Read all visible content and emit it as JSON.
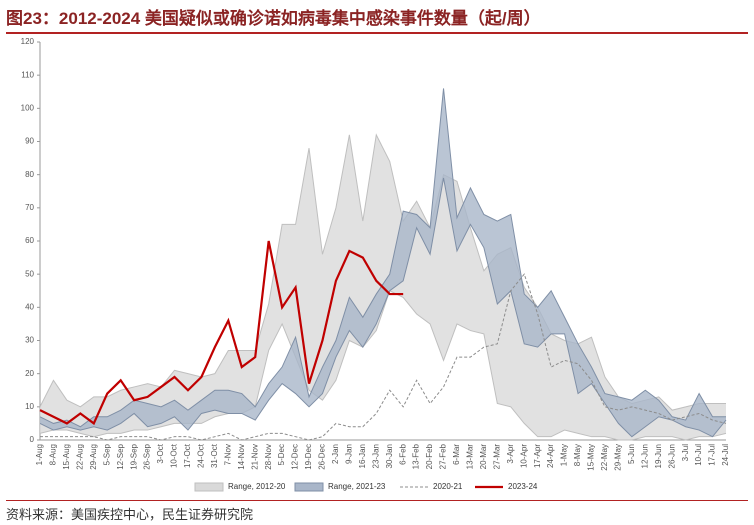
{
  "chart_data": {
    "type": "line",
    "title": "图23：2012-2024 美国疑似或确诊诺如病毒集中感染事件数量（起/周）",
    "source": "资料来源：美国疾控中心，民生证券研究院",
    "categories": [
      "1-Aug",
      "8-Aug",
      "15-Aug",
      "22-Aug",
      "29-Aug",
      "5-Sep",
      "12-Sep",
      "19-Sep",
      "26-Sep",
      "3-Oct",
      "10-Oct",
      "17-Oct",
      "24-Oct",
      "31-Oct",
      "7-Nov",
      "14-Nov",
      "21-Nov",
      "28-Nov",
      "5-Dec",
      "12-Dec",
      "19-Dec",
      "26-Dec",
      "2-Jan",
      "9-Jan",
      "16-Jan",
      "23-Jan",
      "30-Jan",
      "6-Feb",
      "13-Feb",
      "20-Feb",
      "27-Feb",
      "6-Mar",
      "13-Mar",
      "20-Mar",
      "27-Mar",
      "3-Apr",
      "10-Apr",
      "17-Apr",
      "24-Apr",
      "1-May",
      "8-May",
      "15-May",
      "22-May",
      "29-May",
      "5-Jun",
      "12-Jun",
      "19-Jun",
      "26-Jun",
      "3-Jul",
      "10-Jul",
      "17-Jul",
      "24-Jul"
    ],
    "ylim": [
      0,
      120
    ],
    "yticks": [
      0,
      10,
      20,
      30,
      40,
      50,
      60,
      70,
      80,
      90,
      100,
      110,
      120
    ],
    "series": [
      {
        "name": "Range, 2012-20",
        "type": "range",
        "color": "#d9d9d9",
        "edge": "#bfbfbf",
        "upper": [
          10,
          18,
          12,
          10,
          13,
          13,
          15,
          16,
          17,
          16,
          21,
          20,
          19,
          20,
          27,
          27,
          27,
          41,
          65,
          65,
          88,
          56,
          70,
          92,
          66,
          92,
          84,
          66,
          72,
          64,
          80,
          78,
          64,
          51,
          56,
          58,
          46,
          40,
          32,
          30,
          29,
          31,
          19,
          13,
          11,
          12,
          13,
          9,
          10,
          11,
          11,
          11
        ],
        "lower": [
          2,
          3,
          3,
          2,
          1,
          2,
          2,
          3,
          3,
          4,
          5,
          5,
          5,
          7,
          8,
          8,
          10,
          27,
          35,
          25,
          15,
          12,
          18,
          30,
          28,
          33,
          45,
          43,
          38,
          35,
          24,
          35,
          33,
          32,
          11,
          10,
          5,
          1,
          1,
          3,
          2,
          1,
          1,
          0,
          0,
          1,
          1,
          1,
          0,
          1,
          1,
          2
        ]
      },
      {
        "name": "Range, 2021-23",
        "type": "range",
        "color": "#a9b6c9",
        "edge": "#7f8fa6",
        "upper": [
          7,
          5,
          6,
          4,
          7,
          7,
          9,
          12,
          11,
          10,
          12,
          9,
          12,
          15,
          15,
          14,
          10,
          17,
          22,
          31,
          13,
          22,
          30,
          43,
          37,
          44,
          50,
          69,
          68,
          64,
          106,
          67,
          76,
          68,
          66,
          68,
          44,
          40,
          45,
          37,
          29,
          22,
          14,
          13,
          12,
          15,
          12,
          7,
          6,
          14,
          7,
          7
        ],
        "lower": [
          5,
          3,
          4,
          3,
          4,
          3,
          5,
          8,
          4,
          5,
          7,
          3,
          8,
          9,
          8,
          8,
          6,
          12,
          17,
          14,
          10,
          14,
          25,
          33,
          28,
          35,
          45,
          48,
          64,
          56,
          79,
          57,
          65,
          58,
          41,
          45,
          29,
          28,
          32,
          32,
          14,
          17,
          11,
          5,
          1,
          4,
          7,
          6,
          4,
          3,
          1,
          6
        ]
      },
      {
        "name": "2020-21",
        "type": "dashed",
        "color": "#8c8c8c",
        "values": [
          1,
          1,
          1,
          1,
          1,
          0,
          1,
          1,
          1,
          0,
          1,
          1,
          0,
          1,
          2,
          0,
          1,
          2,
          2,
          1,
          0,
          1,
          5,
          4,
          4,
          8,
          15,
          10,
          18,
          11,
          16,
          25,
          25,
          28,
          29,
          45,
          50,
          38,
          22,
          24,
          23,
          18,
          10,
          9,
          10,
          9,
          8,
          6,
          7,
          8,
          6,
          5
        ]
      },
      {
        "name": "2023-24",
        "type": "line",
        "color": "#c00000",
        "values": [
          9,
          7,
          5,
          8,
          5,
          14,
          18,
          12,
          13,
          16,
          19,
          15,
          19,
          28,
          36,
          22,
          25,
          60,
          40,
          46,
          17,
          30,
          48,
          57,
          55,
          48,
          44,
          44,
          null,
          null,
          null,
          null,
          null,
          null,
          null,
          null,
          null,
          null,
          null,
          null,
          null,
          null,
          null,
          null,
          null,
          null,
          null,
          null,
          null,
          null,
          null,
          null
        ]
      }
    ]
  }
}
